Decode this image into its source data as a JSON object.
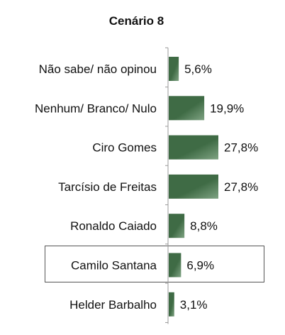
{
  "chart_data": {
    "type": "bar",
    "orientation": "horizontal",
    "title": "Cenário 8",
    "categories": [
      "Não sabe/ não opinou",
      "Nenhum/ Branco/ Nulo",
      "Ciro Gomes",
      "Tarcísio de Freitas",
      "Ronaldo Caiado",
      "Camilo Santana",
      "Helder Barbalho"
    ],
    "values": [
      5.6,
      19.9,
      27.8,
      27.8,
      8.8,
      6.9,
      3.1
    ],
    "value_labels": [
      "5,6%",
      "19,9%",
      "27,8%",
      "27,8%",
      "8,8%",
      "6,9%",
      "3,1%"
    ],
    "highlighted_category": "Camilo Santana",
    "bar_color": "#3f6b45",
    "bar_highlight_color": "#7fa383",
    "axis_color": "#999999",
    "grid": false,
    "legend": "none"
  }
}
